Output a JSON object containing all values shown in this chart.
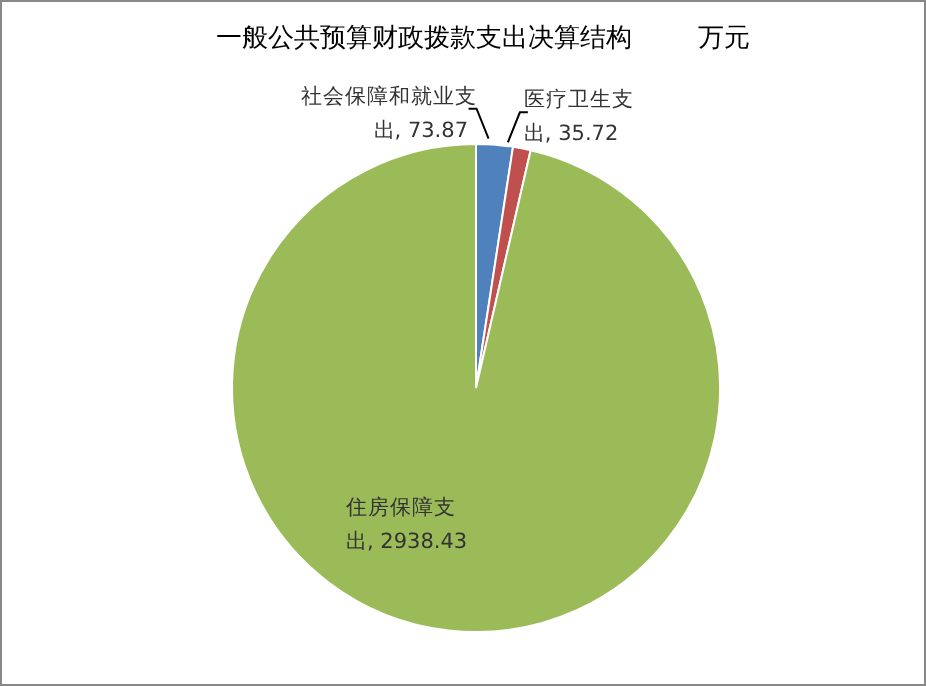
{
  "chart_data": {
    "type": "pie",
    "title": "一般公共预算财政拨款支出决算结构        万元",
    "categories": [
      "社会保障和就业支出",
      "医疗卫生支出",
      "住房保障支出"
    ],
    "values": [
      73.87,
      35.72,
      2938.43
    ],
    "colors": [
      "#4f81bd",
      "#c0504d",
      "#9bbb59"
    ],
    "value_labels": [
      ", 73.87",
      ", 35.72",
      ", 2938.43"
    ],
    "legend": false
  }
}
